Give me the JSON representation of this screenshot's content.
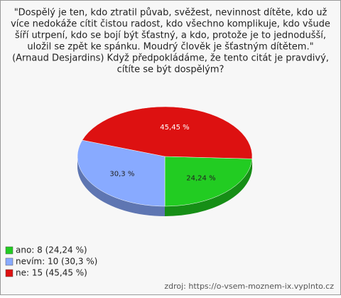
{
  "chart_data": {
    "type": "pie",
    "title": [
      "\"Dospělý je ten, kdo ztratil půvab, svěžest, nevinnost dítěte, kdo už",
      "více nedokáže cítit čistou radost, kdo všechno komplikuje, kdo všude",
      "šíří utrpení, kdo se bojí být šťastný, a kdo, protože je to jednodušší,",
      "uložil se zpět ke spánku. Moudrý člověk je šťastným dítětem.\"",
      "(Arnaud Desjardins) Když předpokládáme, že tento citát je pravdivý,",
      "cítíte se být dospělým?"
    ],
    "categories": [
      "ano: 8 (24,24 %)",
      "nevím: 10 (30,3 %)",
      "ne: 15 (45,45 %)"
    ],
    "values": [
      24.24,
      30.3,
      45.45
    ],
    "value_labels": [
      "24,24 %",
      "30,3 %",
      "45,45 %"
    ],
    "colors": [
      "#22cc22",
      "#88aaff",
      "#dd1111"
    ],
    "source": "zdroj: https://o-vsem-moznem-ix.vyplnto.cz"
  }
}
